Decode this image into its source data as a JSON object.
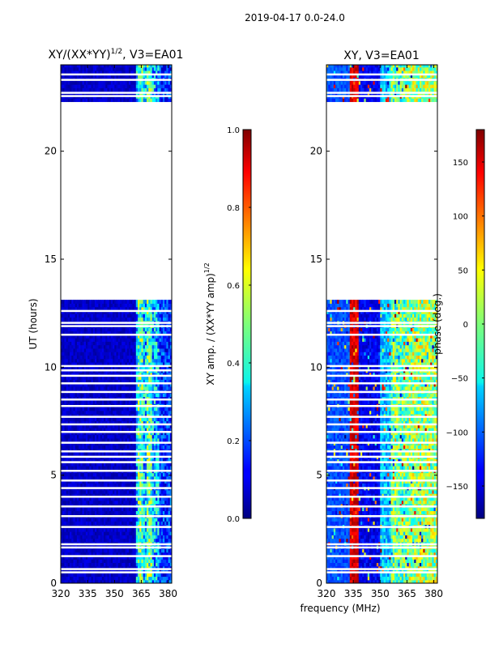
{
  "suptitle": "2019-04-17 0.0-24.0",
  "xlabel": "frequency (MHz)",
  "chart_data": [
    {
      "type": "heatmap",
      "title_main": "XY/(XX*YY)",
      "title_sup": "1/2",
      "title_rest": ", V3=EA01",
      "xlabel": "",
      "ylabel": "UT (hours)",
      "x_ticks": [
        "320",
        "335",
        "350",
        "365",
        "380"
      ],
      "x_tick_values": [
        320,
        335,
        350,
        365,
        380
      ],
      "y_ticks": [
        "0",
        "5",
        "10",
        "15",
        "20"
      ],
      "y_tick_values": [
        0,
        5,
        10,
        15,
        20
      ],
      "xlim": [
        320,
        382
      ],
      "ylim": [
        0,
        24
      ],
      "colorbar": {
        "label_main": "XY amp. / (XX*YY amp)",
        "label_sup": "1/2",
        "ticks": [
          "0.0",
          "0.2",
          "0.4",
          "0.6",
          "0.8",
          "1.0"
        ],
        "tick_values": [
          0,
          0.2,
          0.4,
          0.6,
          0.8,
          1.0
        ],
        "range": [
          0,
          1
        ]
      },
      "data_segments": [
        [
          0,
          13.0
        ],
        [
          22.3,
          24
        ]
      ],
      "gap_hours": [
        0.5,
        0.65,
        1.25,
        1.65,
        1.8,
        2.6,
        3.1,
        3.55,
        4.0,
        4.4,
        4.75,
        5.2,
        5.6,
        5.85,
        6.1,
        6.5,
        7.0,
        7.35,
        7.7,
        8.2,
        8.5,
        8.85,
        9.25,
        9.6,
        9.85,
        10.05,
        11.5,
        11.9,
        12.05,
        12.6,
        22.55,
        22.7,
        23.3,
        23.55
      ],
      "description": "Normalized XY amplitude per frequency channel vs UT; mostly near 0 with elevated values (0.2-0.5) in channels ~362-378 MHz"
    },
    {
      "type": "heatmap",
      "title_main": "XY, V3=EA01",
      "title_sup": "",
      "title_rest": "",
      "xlabel": "",
      "ylabel": "",
      "x_ticks": [
        "320",
        "335",
        "350",
        "365",
        "380"
      ],
      "x_tick_values": [
        320,
        335,
        350,
        365,
        380
      ],
      "y_ticks": [
        "0",
        "5",
        "10",
        "15",
        "20"
      ],
      "y_tick_values": [
        0,
        5,
        10,
        15,
        20
      ],
      "xlim": [
        320,
        382
      ],
      "ylim": [
        0,
        24
      ],
      "colorbar": {
        "label_main": "phase (deg.)",
        "label_sup": "",
        "ticks": [
          "−150",
          "−100",
          "−50",
          "0",
          "50",
          "100",
          "150"
        ],
        "tick_values": [
          -150,
          -100,
          -50,
          0,
          50,
          100,
          150
        ],
        "range": [
          -180,
          180
        ]
      },
      "data_segments": [
        [
          0,
          13.0
        ],
        [
          22.3,
          24
        ]
      ],
      "gap_hours": [
        0.5,
        0.65,
        1.25,
        1.65,
        1.8,
        2.6,
        3.1,
        3.55,
        4.0,
        4.4,
        4.75,
        5.2,
        5.6,
        5.85,
        6.1,
        6.5,
        7.0,
        7.35,
        7.7,
        8.2,
        8.5,
        8.85,
        9.25,
        9.6,
        9.85,
        10.05,
        11.5,
        11.9,
        12.05,
        12.6,
        22.55,
        22.7,
        23.3,
        23.55
      ],
      "description": "XY phase per frequency channel vs UT, spanning -180 to 180 degrees with banded structure"
    }
  ]
}
